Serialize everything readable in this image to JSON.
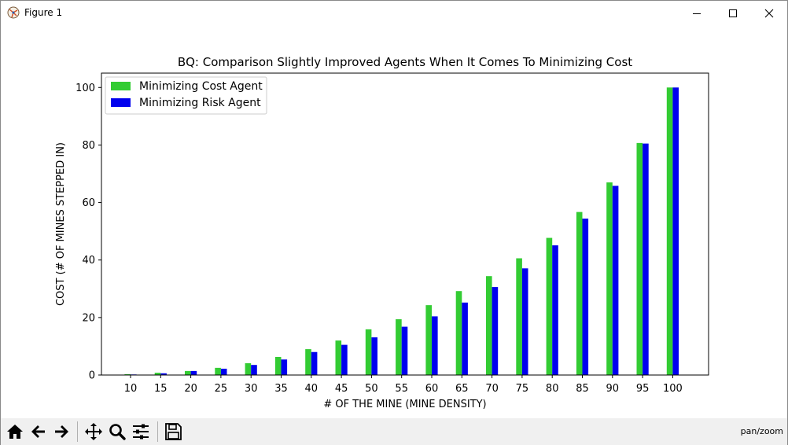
{
  "window": {
    "title": "Figure 1"
  },
  "toolbar": {
    "buttons": [
      "home-icon",
      "back-arrow-icon",
      "forward-arrow-icon",
      "pan-icon",
      "zoom-icon",
      "subplots-config-icon",
      "save-icon"
    ],
    "mode_label": "pan/zoom"
  },
  "colors": {
    "cost_agent": "#33cc33",
    "risk_agent": "#0000ee"
  },
  "chart_data": {
    "type": "bar",
    "title": "BQ: Comparison Slightly Improved Agents When It Comes To Minimizing Cost",
    "xlabel": "# OF THE MINE (MINE DENSITY)",
    "ylabel": "COST (# OF MINES STEPPED IN)",
    "categories": [
      "10",
      "15",
      "20",
      "25",
      "30",
      "35",
      "40",
      "45",
      "50",
      "55",
      "60",
      "65",
      "70",
      "75",
      "80",
      "85",
      "90",
      "95",
      "100"
    ],
    "series": [
      {
        "name": "Minimizing Cost Agent",
        "color": "#33cc33",
        "values": [
          0.3,
          0.8,
          1.4,
          2.5,
          4.1,
          6.3,
          9.0,
          12.0,
          15.9,
          19.4,
          24.3,
          29.2,
          34.4,
          40.6,
          47.7,
          56.7,
          67.0,
          80.7,
          100.0
        ]
      },
      {
        "name": "Minimizing Risk Agent",
        "color": "#0000ee",
        "values": [
          0.2,
          0.6,
          1.4,
          2.2,
          3.5,
          5.4,
          8.0,
          10.5,
          13.1,
          16.8,
          20.4,
          25.2,
          30.6,
          37.1,
          45.1,
          54.4,
          65.8,
          80.5,
          100.0
        ]
      }
    ],
    "yticks": [
      0,
      20,
      40,
      60,
      80,
      100
    ],
    "ylim": [
      0,
      105
    ],
    "legend_position": "upper left",
    "grid": false
  }
}
